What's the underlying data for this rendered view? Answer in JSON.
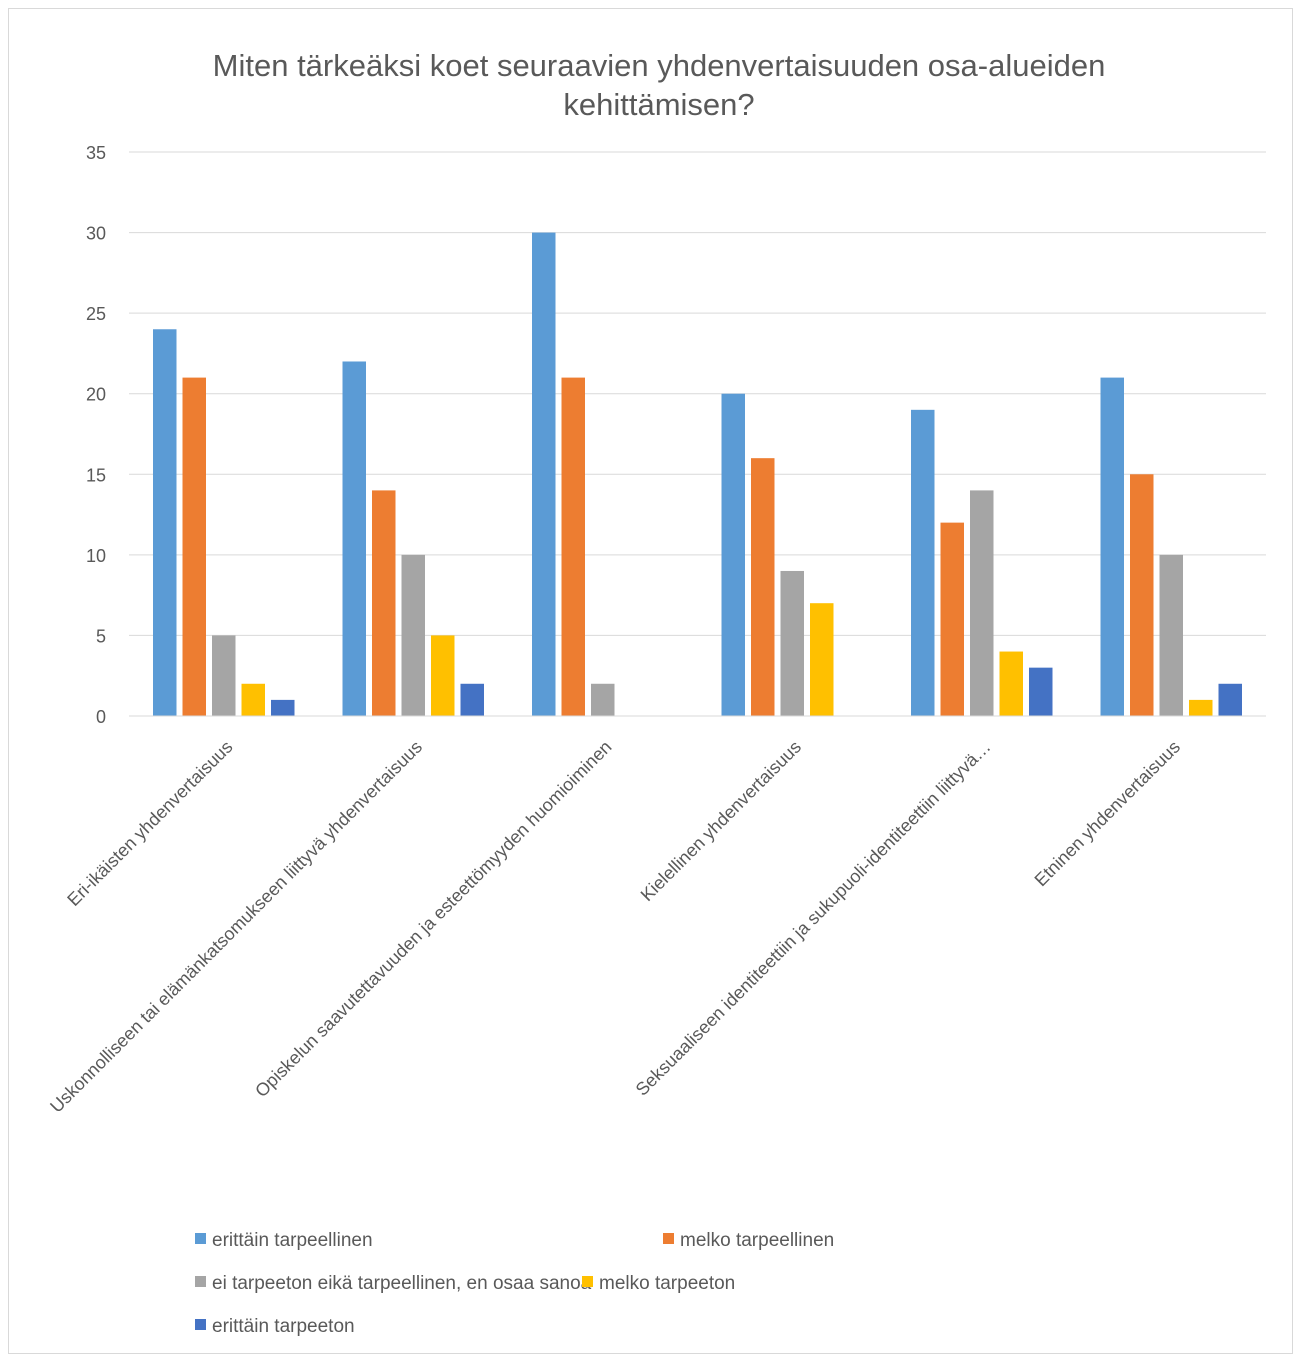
{
  "chart_data": {
    "type": "bar",
    "title": "Miten tärkeäksi koet seuraavien yhdenvertaisuuden osa-alueiden kehittämisen?",
    "title_lines": [
      "Miten tärkeäksi koet seuraavien yhdenvertaisuuden osa-alueiden",
      "kehittämisen?"
    ],
    "categories": [
      "Eri-ikäisten yhdenvertaisuus",
      "Uskonnolliseen tai elämänkatsomukseen liittyvä yhdenvertaisuus",
      "Opiskelun saavutettavuuden ja esteettömyyden huomioiminen",
      "Kielellinen yhdenvertaisuus",
      "Seksuaaliseen identiteettiin ja sukupuoli-identiteettiin liittyvä…",
      "Etninen yhdenvertaisuus"
    ],
    "series": [
      {
        "name": "erittäin tarpeellinen",
        "color": "#5b9bd5",
        "values": [
          24,
          22,
          30,
          20,
          19,
          21
        ]
      },
      {
        "name": "melko tarpeellinen",
        "color": "#ed7d31",
        "values": [
          21,
          14,
          21,
          16,
          12,
          15
        ]
      },
      {
        "name": "ei tarpeeton eikä tarpeellinen, en osaa sanoa",
        "color": "#a5a5a5",
        "values": [
          5,
          10,
          2,
          9,
          14,
          10
        ]
      },
      {
        "name": "melko tarpeeton",
        "color": "#ffc000",
        "values": [
          2,
          5,
          0,
          7,
          4,
          1
        ]
      },
      {
        "name": "erittäin tarpeeton",
        "color": "#4472c4",
        "values": [
          1,
          2,
          0,
          0,
          3,
          2
        ]
      }
    ],
    "ylim": [
      0,
      35
    ],
    "yticks": [
      "0",
      "5",
      "10",
      "15",
      "20",
      "25",
      "30",
      "35"
    ],
    "ytick_values": [
      0,
      5,
      10,
      15,
      20,
      25,
      30,
      35
    ],
    "xlabel": "",
    "ylabel": "",
    "grid": true,
    "legend": "bottom"
  }
}
